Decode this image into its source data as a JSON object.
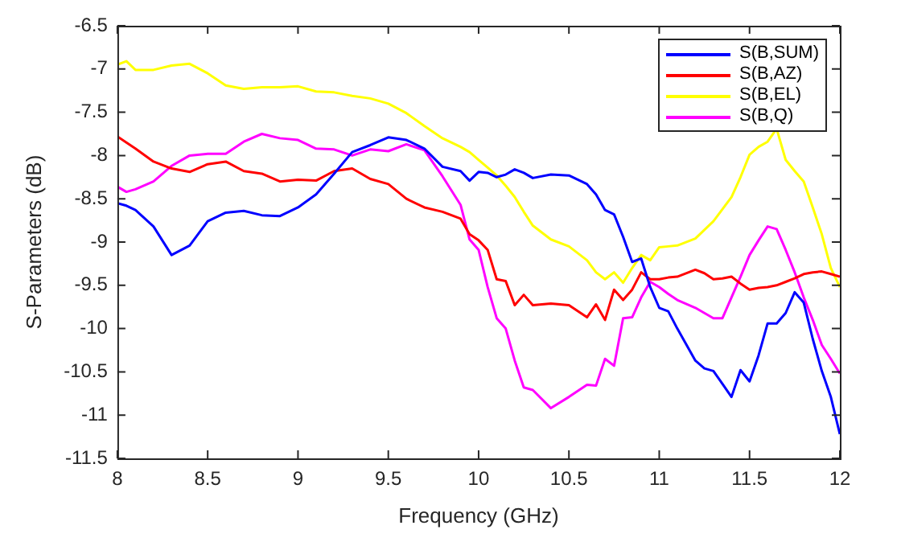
{
  "chart_data": {
    "type": "line",
    "xlabel": "Frequency (GHz)",
    "ylabel": "S-Parameters (dB)",
    "x": [
      8,
      8.05,
      8.1,
      8.2,
      8.3,
      8.4,
      8.5,
      8.6,
      8.7,
      8.8,
      8.9,
      9,
      9.1,
      9.2,
      9.3,
      9.4,
      9.5,
      9.6,
      9.7,
      9.8,
      9.9,
      9.95,
      10,
      10.05,
      10.1,
      10.15,
      10.2,
      10.25,
      10.3,
      10.4,
      10.5,
      10.6,
      10.65,
      10.7,
      10.75,
      10.8,
      10.85,
      10.9,
      10.95,
      11,
      11.05,
      11.1,
      11.2,
      11.25,
      11.3,
      11.35,
      11.4,
      11.45,
      11.5,
      11.55,
      11.6,
      11.65,
      11.7,
      11.75,
      11.8,
      11.85,
      11.9,
      11.95,
      12
    ],
    "series": [
      {
        "name": "S(B,SUM)",
        "color": "#0000ff",
        "values": [
          -8.55,
          -8.58,
          -8.63,
          -8.82,
          -9.15,
          -9.04,
          -8.76,
          -8.66,
          -8.64,
          -8.69,
          -8.7,
          -8.6,
          -8.45,
          -8.21,
          -7.96,
          -7.88,
          -7.79,
          -7.82,
          -7.92,
          -8.13,
          -8.18,
          -8.29,
          -8.19,
          -8.2,
          -8.25,
          -8.22,
          -8.16,
          -8.2,
          -8.26,
          -8.22,
          -8.23,
          -8.33,
          -8.45,
          -8.63,
          -8.68,
          -8.94,
          -9.23,
          -9.19,
          -9.52,
          -9.76,
          -9.8,
          -10.0,
          -10.37,
          -10.46,
          -10.49,
          -10.64,
          -10.79,
          -10.48,
          -10.61,
          -10.31,
          -9.94,
          -9.94,
          -9.82,
          -9.58,
          -9.7,
          -10.12,
          -10.49,
          -10.79,
          -11.22
        ]
      },
      {
        "name": "S(B,AZ)",
        "color": "#ff0000",
        "values": [
          -7.78,
          -7.85,
          -7.92,
          -8.07,
          -8.15,
          -8.19,
          -8.1,
          -8.07,
          -8.18,
          -8.21,
          -8.3,
          -8.28,
          -8.29,
          -8.18,
          -8.15,
          -8.27,
          -8.33,
          -8.5,
          -8.6,
          -8.65,
          -8.73,
          -8.91,
          -8.98,
          -9.09,
          -9.43,
          -9.45,
          -9.73,
          -9.61,
          -9.73,
          -9.71,
          -9.73,
          -9.87,
          -9.72,
          -9.9,
          -9.55,
          -9.67,
          -9.55,
          -9.35,
          -9.43,
          -9.43,
          -9.41,
          -9.4,
          -9.32,
          -9.36,
          -9.43,
          -9.42,
          -9.4,
          -9.48,
          -9.55,
          -9.53,
          -9.52,
          -9.5,
          -9.46,
          -9.42,
          -9.37,
          -9.35,
          -9.34,
          -9.37,
          -9.4
        ]
      },
      {
        "name": "S(B,EL)",
        "color": "#ffff00",
        "values": [
          -6.95,
          -6.91,
          -7.01,
          -7.01,
          -6.96,
          -6.94,
          -7.05,
          -7.19,
          -7.23,
          -7.21,
          -7.21,
          -7.2,
          -7.26,
          -7.27,
          -7.31,
          -7.34,
          -7.4,
          -7.51,
          -7.66,
          -7.8,
          -7.9,
          -7.96,
          -8.05,
          -8.14,
          -8.23,
          -8.35,
          -8.48,
          -8.65,
          -8.81,
          -8.97,
          -9.05,
          -9.21,
          -9.35,
          -9.43,
          -9.35,
          -9.47,
          -9.3,
          -9.15,
          -9.21,
          -9.06,
          -9.05,
          -9.04,
          -8.96,
          -8.86,
          -8.76,
          -8.62,
          -8.48,
          -8.25,
          -7.99,
          -7.9,
          -7.84,
          -7.69,
          -8.05,
          -8.18,
          -8.3,
          -8.6,
          -8.91,
          -9.3,
          -9.52
        ]
      },
      {
        "name": "S(B,Q)",
        "color": "#ff00ff",
        "values": [
          -8.36,
          -8.42,
          -8.39,
          -8.3,
          -8.12,
          -8.0,
          -7.98,
          -7.98,
          -7.84,
          -7.75,
          -7.8,
          -7.82,
          -7.92,
          -7.93,
          -8.0,
          -7.93,
          -7.95,
          -7.87,
          -7.94,
          -8.24,
          -8.57,
          -8.97,
          -9.09,
          -9.52,
          -9.88,
          -10.0,
          -10.37,
          -10.68,
          -10.71,
          -10.92,
          -10.79,
          -10.65,
          -10.66,
          -10.35,
          -10.43,
          -9.88,
          -9.87,
          -9.64,
          -9.46,
          -9.52,
          -9.6,
          -9.67,
          -9.76,
          -9.82,
          -9.88,
          -9.88,
          -9.64,
          -9.4,
          -9.15,
          -8.98,
          -8.82,
          -8.85,
          -9.09,
          -9.35,
          -9.64,
          -9.9,
          -10.19,
          -10.35,
          -10.52
        ]
      }
    ],
    "xlim": [
      8,
      12
    ],
    "xticks": [
      8,
      8.5,
      9,
      9.5,
      10,
      10.5,
      11,
      11.5,
      12
    ],
    "ylim": [
      -11.5,
      -6.5
    ],
    "yticks": [
      -11.5,
      -11,
      -10.5,
      -10,
      -9.5,
      -9,
      -8.5,
      -8,
      -7.5,
      -7,
      -6.5
    ],
    "legend": "top right",
    "grid": false,
    "marker": "none",
    "line_style": "solid"
  }
}
